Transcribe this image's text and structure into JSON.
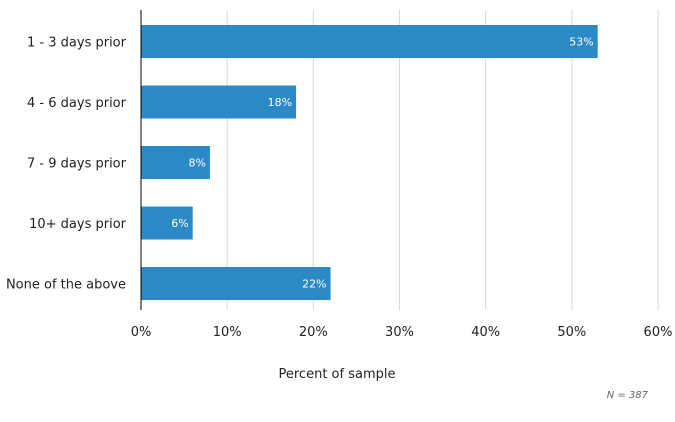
{
  "chart_data": {
    "type": "bar",
    "orientation": "horizontal",
    "categories": [
      "1 - 3 days prior",
      "4 - 6 days prior",
      "7 - 9 days prior",
      "10+ days prior",
      "None of the above"
    ],
    "values": [
      53,
      18,
      8,
      6,
      22
    ],
    "data_labels": [
      "53%",
      "18%",
      "8%",
      "6%",
      "22%"
    ],
    "xlabel": "Percent of sample",
    "ylabel": "",
    "xlim": [
      0,
      60
    ],
    "x_ticks": [
      0,
      10,
      20,
      30,
      40,
      50,
      60
    ],
    "x_tick_labels": [
      "0%",
      "10%",
      "20%",
      "30%",
      "40%",
      "50%",
      "60%"
    ],
    "grid": "vertical",
    "legend": "none",
    "bar_color": "#2b8ac6",
    "grid_color": "#d9d9d9"
  },
  "note": "N = 387"
}
